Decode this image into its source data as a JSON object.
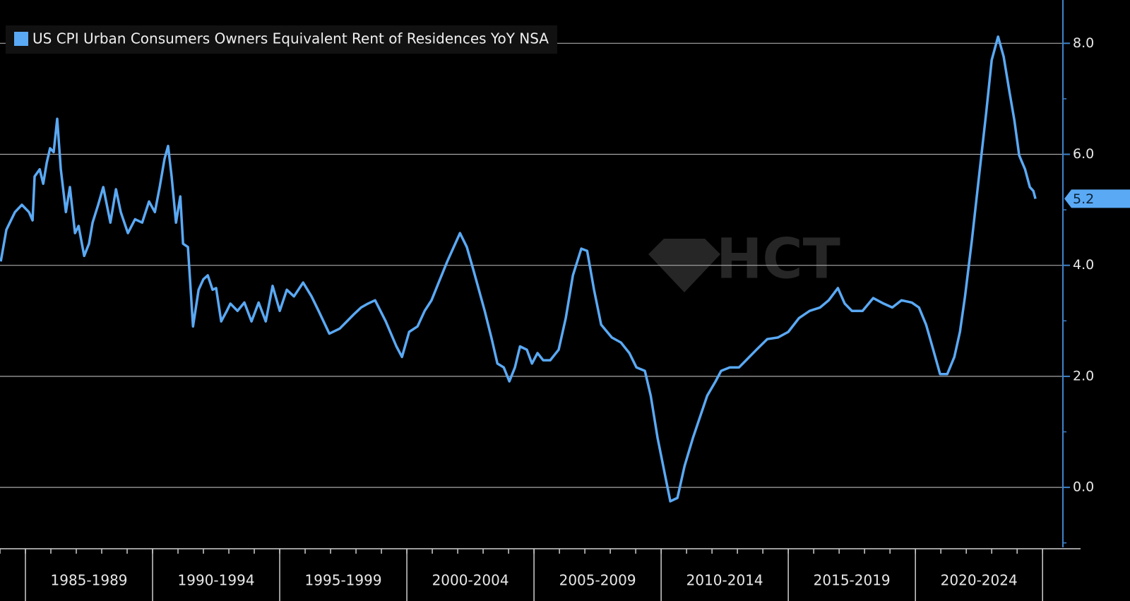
{
  "chart_data": {
    "type": "line",
    "watermark": "HCT",
    "series": [
      {
        "name": "US CPI Urban Consumers Owners Equivalent Rent of Residences YoY NSA",
        "color": "#5aa9f4",
        "x": [
          1984.03,
          1984.25,
          1984.59,
          1984.86,
          1985.14,
          1985.28,
          1985.36,
          1985.56,
          1985.7,
          1985.84,
          1985.97,
          1986.11,
          1986.25,
          1986.39,
          1986.59,
          1986.75,
          1986.95,
          1987.09,
          1987.31,
          1987.5,
          1987.64,
          1987.86,
          1988.06,
          1988.34,
          1988.56,
          1988.75,
          1989.03,
          1989.31,
          1989.59,
          1989.86,
          1990.09,
          1990.28,
          1990.47,
          1990.61,
          1990.75,
          1990.92,
          1991.09,
          1991.2,
          1991.39,
          1991.59,
          1991.81,
          1992.0,
          1992.17,
          1992.36,
          1992.5,
          1992.7,
          1992.92,
          1993.06,
          1993.34,
          1993.61,
          1993.89,
          1994.17,
          1994.45,
          1994.72,
          1995.0,
          1995.28,
          1995.56,
          1995.92,
          1996.25,
          1996.53,
          1996.95,
          1997.36,
          1997.64,
          1997.92,
          1998.2,
          1998.47,
          1998.75,
          1999.17,
          1999.59,
          1999.81,
          2000.09,
          2000.42,
          2000.7,
          2000.97,
          2001.25,
          2001.59,
          2002.09,
          2002.36,
          2002.64,
          2003.06,
          2003.34,
          2003.56,
          2003.81,
          2004.03,
          2004.25,
          2004.45,
          2004.72,
          2004.92,
          2005.14,
          2005.36,
          2005.64,
          2005.97,
          2006.25,
          2006.53,
          2006.86,
          2007.09,
          2007.36,
          2007.64,
          2008.06,
          2008.42,
          2008.75,
          2009.03,
          2009.36,
          2009.59,
          2009.86,
          2010.14,
          2010.36,
          2010.64,
          2010.92,
          2011.25,
          2011.53,
          2011.81,
          2012.14,
          2012.36,
          2012.7,
          2013.06,
          2013.34,
          2013.75,
          2014.17,
          2014.59,
          2015.0,
          2015.42,
          2015.84,
          2016.25,
          2016.59,
          2016.95,
          2017.22,
          2017.5,
          2017.92,
          2018.34,
          2018.75,
          2019.09,
          2019.45,
          2019.86,
          2020.14,
          2020.42,
          2020.7,
          2020.97,
          2021.25,
          2021.53,
          2021.75,
          2021.95,
          2022.22,
          2022.5,
          2022.78,
          2023.0,
          2023.25,
          2023.47,
          2023.7,
          2023.89,
          2024.08,
          2024.31,
          2024.5,
          2024.64,
          2024.72
        ],
        "values": [
          4.07,
          4.64,
          4.96,
          5.09,
          4.96,
          4.81,
          5.6,
          5.73,
          5.47,
          5.85,
          6.11,
          6.04,
          6.64,
          5.73,
          4.96,
          5.41,
          4.58,
          4.71,
          4.17,
          4.39,
          4.77,
          5.09,
          5.41,
          4.77,
          5.37,
          4.96,
          4.58,
          4.83,
          4.77,
          5.15,
          4.96,
          5.41,
          5.92,
          6.15,
          5.6,
          4.77,
          5.24,
          4.39,
          4.33,
          2.9,
          3.56,
          3.75,
          3.82,
          3.56,
          3.59,
          2.99,
          3.18,
          3.31,
          3.18,
          3.33,
          2.99,
          3.33,
          2.99,
          3.63,
          3.18,
          3.56,
          3.44,
          3.69,
          3.44,
          3.18,
          2.77,
          2.86,
          2.99,
          3.12,
          3.24,
          3.31,
          3.37,
          2.99,
          2.54,
          2.35,
          2.8,
          2.9,
          3.18,
          3.37,
          3.69,
          4.07,
          4.58,
          4.33,
          3.88,
          3.18,
          2.67,
          2.23,
          2.16,
          1.91,
          2.16,
          2.54,
          2.48,
          2.23,
          2.42,
          2.29,
          2.29,
          2.48,
          3.05,
          3.82,
          4.3,
          4.26,
          3.56,
          2.93,
          2.7,
          2.61,
          2.42,
          2.16,
          2.1,
          1.65,
          0.89,
          0.25,
          -0.25,
          -0.19,
          0.38,
          0.89,
          1.27,
          1.65,
          1.91,
          2.1,
          2.16,
          2.16,
          2.29,
          2.48,
          2.67,
          2.7,
          2.8,
          3.05,
          3.18,
          3.24,
          3.37,
          3.59,
          3.31,
          3.18,
          3.18,
          3.41,
          3.31,
          3.24,
          3.37,
          3.33,
          3.24,
          2.93,
          2.48,
          2.04,
          2.04,
          2.35,
          2.8,
          3.44,
          4.45,
          5.6,
          6.74,
          7.7,
          8.12,
          7.76,
          7.12,
          6.62,
          5.98,
          5.73,
          5.41,
          5.34,
          5.2
        ]
      }
    ],
    "categories": [
      "1985-1989",
      "1990-1994",
      "1995-1999",
      "2000-2004",
      "2005-2009",
      "2010-2014",
      "2015-2019",
      "2020-2024"
    ],
    "xlim": [
      1984.0,
      2025.8
    ],
    "xticks": [
      1985,
      1990,
      1995,
      2000,
      2005,
      2010,
      2015,
      2020,
      2025
    ],
    "ylim": [
      -1.08,
      8.78
    ],
    "yticks": [
      {
        "value": 0,
        "label": "0.0"
      },
      {
        "value": 2,
        "label": "2.0"
      },
      {
        "value": 4,
        "label": "4.0"
      },
      {
        "value": 6,
        "label": "6.0"
      },
      {
        "value": 8,
        "label": "8.0"
      }
    ],
    "grid": true,
    "y_axis_side": "right",
    "legend": "top-left"
  }
}
